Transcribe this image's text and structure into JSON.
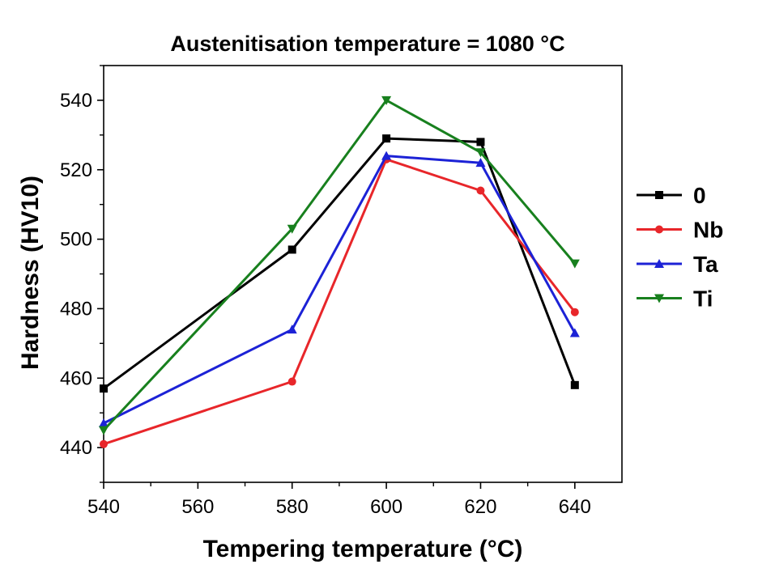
{
  "chart_data": {
    "type": "line",
    "title": "Austenitisation temperature = 1080 °C",
    "xlabel": "Tempering temperature (°C)",
    "ylabel": "Hardness (HV10)",
    "xlim": [
      540,
      650
    ],
    "ylim": [
      430,
      550
    ],
    "xticks": [
      "540",
      "560",
      "580",
      "600",
      "620",
      "640"
    ],
    "yticks": [
      "440",
      "460",
      "480",
      "500",
      "520",
      "540"
    ],
    "x": [
      540,
      580,
      600,
      620,
      640
    ],
    "series": [
      {
        "name": "0",
        "color": "#000000",
        "marker": "square",
        "values": [
          457,
          497,
          529,
          528,
          458
        ]
      },
      {
        "name": "Nb",
        "color": "#e8262a",
        "marker": "circle",
        "values": [
          441,
          459,
          523,
          514,
          479
        ]
      },
      {
        "name": "Ta",
        "color": "#1c22d6",
        "marker": "triangle-up",
        "values": [
          447,
          474,
          524,
          522,
          473
        ]
      },
      {
        "name": "Ti",
        "color": "#18801e",
        "marker": "triangle-down",
        "values": [
          445,
          503,
          540,
          525,
          493
        ]
      }
    ],
    "grid": false,
    "legend_position": "right"
  }
}
